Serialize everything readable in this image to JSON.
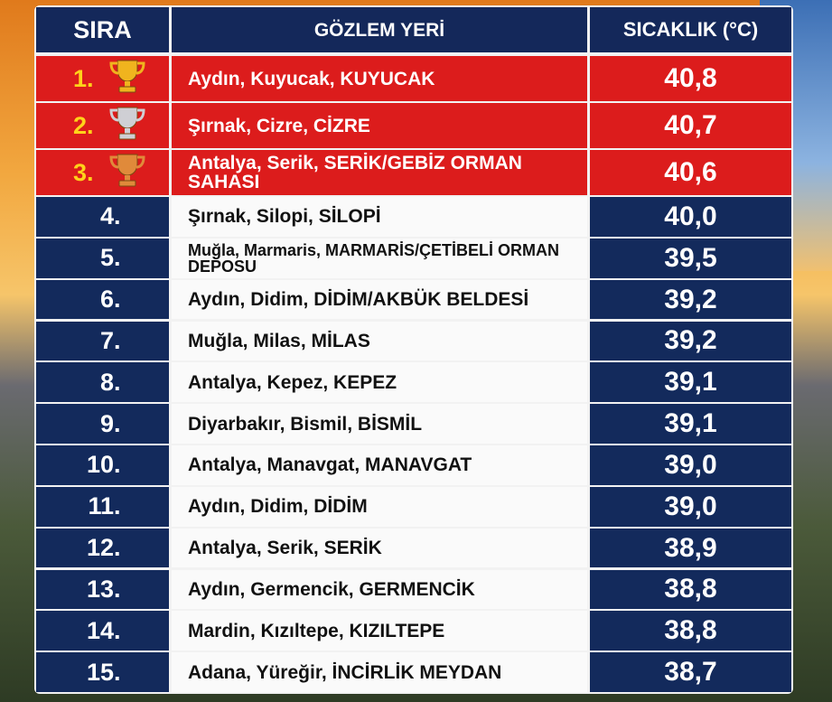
{
  "table": {
    "header": [
      "SIRA",
      "GÖZLEM YERİ",
      "SICAKLIK (°C)"
    ],
    "rows": [
      [
        "1.",
        "Aydın, Kuyucak, KUYUCAK",
        "40,8"
      ],
      [
        "2.",
        "Şırnak, Cizre, CİZRE",
        "40,7"
      ],
      [
        "3.",
        "Antalya, Serik, SERİK/GEBİZ ORMAN SAHASI",
        "40,6"
      ],
      [
        "4.",
        "Şırnak, Silopi, SİLOPİ",
        "40,0"
      ],
      [
        "5.",
        "Muğla, Marmaris, MARMARİS/ÇETİBELİ ORMAN DEPOSU",
        "39,5"
      ],
      [
        "6.",
        "Aydın, Didim, DİDİM/AKBÜK BELDESİ",
        "39,2"
      ],
      [
        "7.",
        "Muğla, Milas, MİLAS",
        "39,2"
      ],
      [
        "8.",
        "Antalya, Kepez, KEPEZ",
        "39,1"
      ],
      [
        "9.",
        "Diyarbakır, Bismil, BİSMİL",
        "39,1"
      ],
      [
        "10.",
        "Antalya, Manavgat, MANAVGAT",
        "39,0"
      ],
      [
        "11.",
        "Aydın, Didim, DİDİM",
        "39,0"
      ],
      [
        "12.",
        "Antalya, Serik, SERİK",
        "38,9"
      ],
      [
        "13.",
        "Aydın, Germencik, GERMENCİK",
        "38,8"
      ],
      [
        "14.",
        "Mardin, Kızıltepe, KIZILTEPE",
        "38,8"
      ],
      [
        "15.",
        "Adana, Yüreğir, İNCİRLİK MEYDAN",
        "38,7"
      ]
    ]
  }
}
